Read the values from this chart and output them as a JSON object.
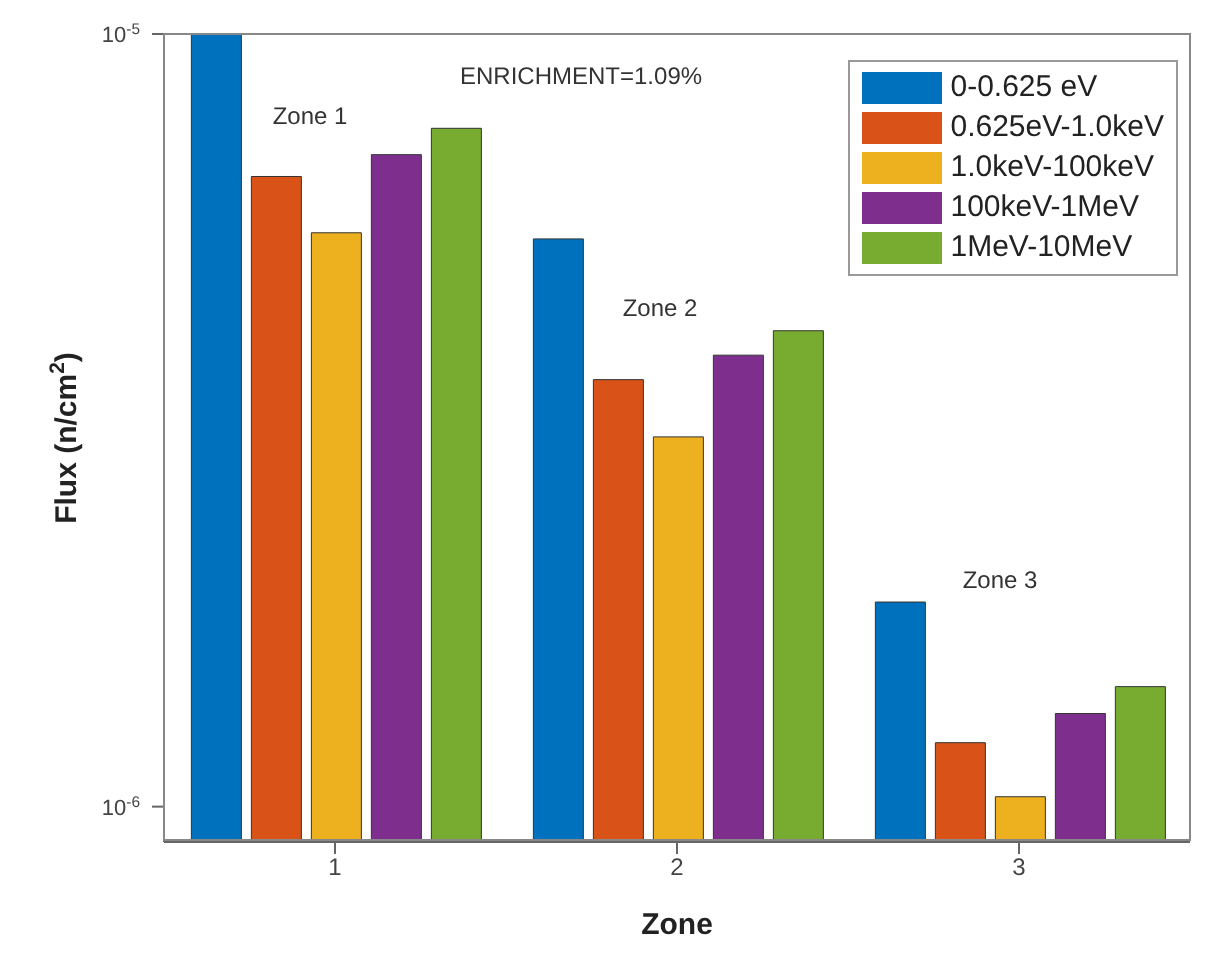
{
  "chart_data": {
    "type": "bar",
    "xlabel": "Zone",
    "ylabel": "Flux (n/cm$^{2}$)",
    "categories": [
      "1",
      "2",
      "3"
    ],
    "series": [
      {
        "name": "0-0.625 eV",
        "color": "#0072bd",
        "values": [
          1e-05,
          5.43e-06,
          1.84e-06
        ]
      },
      {
        "name": "0.625eV-1.0keV",
        "color": "#d95319",
        "values": [
          6.54e-06,
          3.57e-06,
          1.21e-06
        ]
      },
      {
        "name": "1.0keV-100keV",
        "color": "#edb120",
        "values": [
          5.53e-06,
          3.01e-06,
          1.03e-06
        ]
      },
      {
        "name": "100keV-1MeV",
        "color": "#7e2f8e",
        "values": [
          6.98e-06,
          3.84e-06,
          1.32e-06
        ]
      },
      {
        "name": "1MeV-10MeV",
        "color": "#77ac30",
        "values": [
          7.55e-06,
          4.13e-06,
          1.43e-06
        ]
      }
    ],
    "log": "y",
    "ylim": [
      9e-07,
      1e-05
    ],
    "yticks": [
      {
        "value": 1e-06,
        "label": "10$^{-6}$"
      },
      {
        "value": 1e-05,
        "label": "10$^{-5}$"
      }
    ],
    "legend": "top right",
    "grid": false,
    "annotations": [
      "ENRICHMENT=1.09%",
      "Zone 1",
      "Zone 2",
      "Zone 3"
    ]
  }
}
